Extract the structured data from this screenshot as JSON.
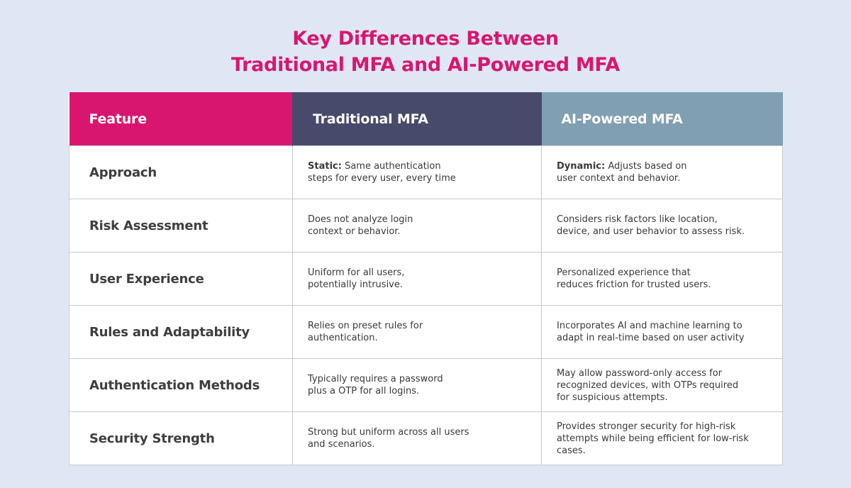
{
  "title": {
    "line1": "Key Differences Between",
    "line2": "Traditional MFA and AI-Powered MFA",
    "color": "#d7176f"
  },
  "table": {
    "headers": [
      {
        "label": "Feature",
        "color": "#d8166f"
      },
      {
        "label": "Traditional MFA",
        "color": "#484a6b"
      },
      {
        "label": "AI-Powered MFA",
        "color": "#809fb2"
      }
    ],
    "rows": [
      {
        "feature": "Approach",
        "traditional": {
          "label": "Static:",
          "lines": [
            "Same authentication",
            "steps for every user, every time"
          ]
        },
        "ai": {
          "label": "Dynamic:",
          "lines": [
            "Adjusts based on",
            "user context and behavior."
          ]
        }
      },
      {
        "feature": "Risk Assessment",
        "traditional": {
          "lines": [
            "Does not analyze login",
            "context or behavior."
          ]
        },
        "ai": {
          "lines": [
            "Considers risk factors like location,",
            "device, and user behavior to assess risk."
          ]
        }
      },
      {
        "feature": "User Experience",
        "traditional": {
          "lines": [
            "Uniform for all users,",
            "potentially intrusive."
          ]
        },
        "ai": {
          "lines": [
            "Personalized experience that",
            "reduces friction for trusted users."
          ]
        }
      },
      {
        "feature": "Rules and Adaptability",
        "traditional": {
          "lines": [
            "Relies on preset rules for",
            "authentication."
          ]
        },
        "ai": {
          "lines": [
            "Incorporates AI and machine learning to",
            "adapt in real-time based on user activity"
          ]
        }
      },
      {
        "feature": "Authentication Methods",
        "traditional": {
          "lines": [
            "Typically requires a password",
            "plus a OTP for all logins."
          ]
        },
        "ai": {
          "lines": [
            "May allow password-only access for",
            "recognized devices, with OTPs required",
            "for suspicious attempts."
          ]
        }
      },
      {
        "feature": "Security Strength",
        "traditional": {
          "lines": [
            "Strong but uniform across all users",
            "and scenarios."
          ]
        },
        "ai": {
          "lines": [
            "Provides stronger security for high-risk",
            "attempts while being efficient for low-risk",
            "cases."
          ]
        }
      }
    ]
  }
}
